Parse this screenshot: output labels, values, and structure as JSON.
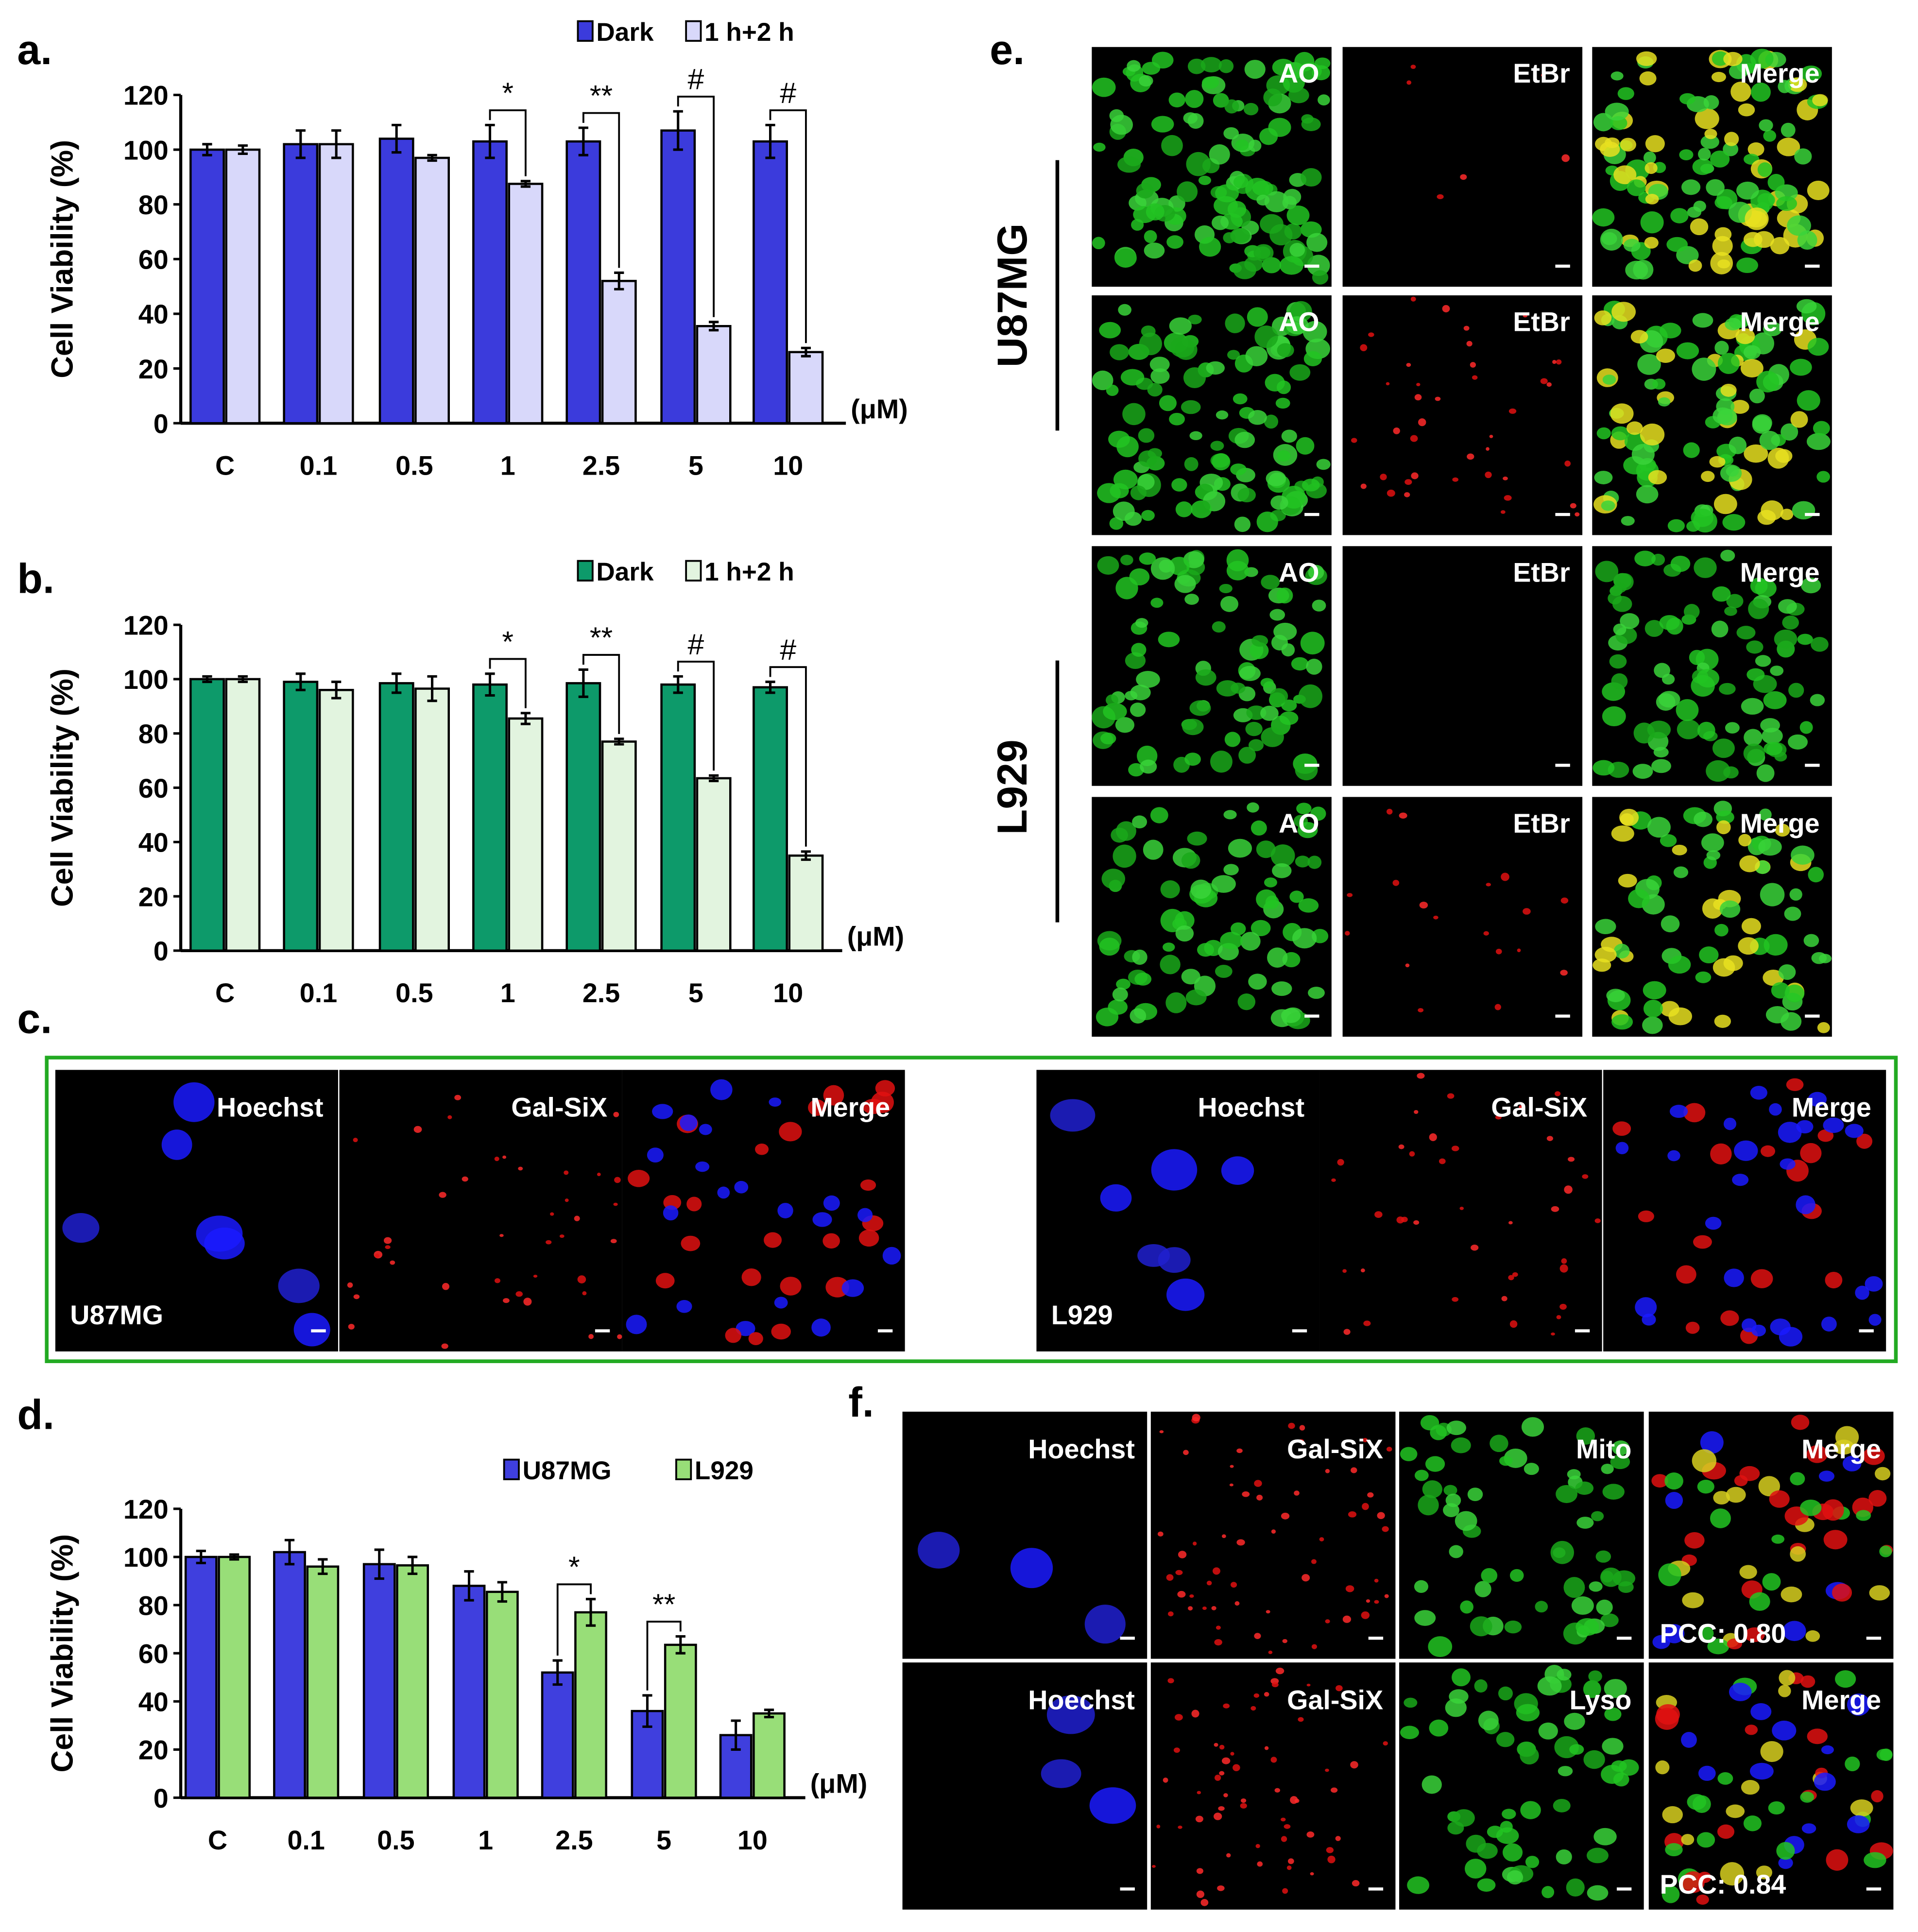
{
  "panel_labels": {
    "a": "a.",
    "b": "b.",
    "c": "c.",
    "d": "d.",
    "e": "e.",
    "f": "f."
  },
  "chart_data": [
    {
      "id": "a",
      "type": "bar",
      "categories": [
        "C",
        "0.1",
        "0.5",
        "1",
        "2.5",
        "5",
        "10"
      ],
      "unit_label": "(μM)",
      "ylabel": "Cell Viability (%)",
      "ylim": [
        0,
        120
      ],
      "yticks": [
        0,
        20,
        40,
        60,
        80,
        100,
        120
      ],
      "legend_position": "top-right",
      "series": [
        {
          "name": "Dark",
          "color": "#3b3bdc",
          "values": [
            100,
            102,
            104,
            103,
            103,
            107,
            103
          ],
          "errors": [
            2,
            5,
            5,
            6,
            5,
            7,
            6
          ]
        },
        {
          "name": "1 h+2 h",
          "color": "#d8d8fa",
          "values": [
            100,
            102,
            97,
            87.5,
            52,
            35.5,
            26
          ],
          "errors": [
            1.5,
            5,
            1,
            1,
            3,
            1.5,
            1.5
          ]
        }
      ],
      "significance": [
        {
          "category": "1",
          "label": "*"
        },
        {
          "category": "2.5",
          "label": "**"
        },
        {
          "category": "5",
          "label": "#"
        },
        {
          "category": "10",
          "label": "#"
        }
      ]
    },
    {
      "id": "b",
      "type": "bar",
      "categories": [
        "C",
        "0.1",
        "0.5",
        "1",
        "2.5",
        "5",
        "10"
      ],
      "unit_label": "(μM)",
      "ylabel": "Cell Viability (%)",
      "ylim": [
        0,
        120
      ],
      "yticks": [
        0,
        20,
        40,
        60,
        80,
        100,
        120
      ],
      "legend_position": "top-right",
      "series": [
        {
          "name": "Dark",
          "color": "#0d9a6a",
          "values": [
            100,
            99,
            98.5,
            98,
            98.5,
            98,
            97
          ],
          "errors": [
            1,
            3,
            3.5,
            4,
            5,
            3,
            2
          ]
        },
        {
          "name": "1 h+2 h",
          "color": "#e2f4df",
          "values": [
            100,
            96,
            96.5,
            85.5,
            77,
            63.5,
            35
          ],
          "errors": [
            1,
            3,
            4.5,
            2,
            1,
            1,
            1.5
          ]
        }
      ],
      "significance": [
        {
          "category": "1",
          "label": "*"
        },
        {
          "category": "2.5",
          "label": "**"
        },
        {
          "category": "5",
          "label": "#"
        },
        {
          "category": "10",
          "label": "#"
        }
      ]
    },
    {
      "id": "d",
      "type": "bar",
      "categories": [
        "C",
        "0.1",
        "0.5",
        "1",
        "2.5",
        "5",
        "10"
      ],
      "unit_label": "(μM)",
      "ylabel": "Cell Viability (%)",
      "ylim": [
        0,
        120
      ],
      "yticks": [
        0,
        20,
        40,
        60,
        80,
        100,
        120
      ],
      "legend_position": "top-right",
      "series": [
        {
          "name": "U87MG",
          "color": "#3f3fde",
          "values": [
            100,
            102,
            97,
            88,
            52,
            36,
            26
          ],
          "errors": [
            2.5,
            5,
            6,
            6,
            5,
            6.5,
            6
          ]
        },
        {
          "name": "L929",
          "color": "#98de78",
          "values": [
            100,
            96,
            96.5,
            85.5,
            77,
            63.5,
            35
          ],
          "errors": [
            1,
            3,
            3.5,
            4,
            5.5,
            3.5,
            1.5
          ]
        }
      ],
      "significance": [
        {
          "category": "2.5",
          "label": "*"
        },
        {
          "category": "5",
          "label": "**"
        }
      ]
    }
  ],
  "panel_c": {
    "border_color": "#22aa22",
    "groups": [
      {
        "cell_line": "U87MG",
        "channels": [
          "Hoechst",
          "Gal-SiX",
          "Merge"
        ]
      },
      {
        "cell_line": "L929",
        "channels": [
          "Hoechst",
          "Gal-SiX",
          "Merge"
        ]
      }
    ]
  },
  "panel_e": {
    "channels": [
      "AO",
      "EtBr",
      "Merge"
    ],
    "cell_lines": [
      "U87MG",
      "L929"
    ]
  },
  "panel_f": {
    "rows": [
      {
        "channels": [
          "Hoechst",
          "Gal-SiX",
          "Mito",
          "Merge"
        ],
        "pcc": "PCC: 0.80"
      },
      {
        "channels": [
          "Hoechst",
          "Gal-SiX",
          "Lyso",
          "Merge"
        ],
        "pcc": "PCC: 0.84"
      }
    ]
  }
}
